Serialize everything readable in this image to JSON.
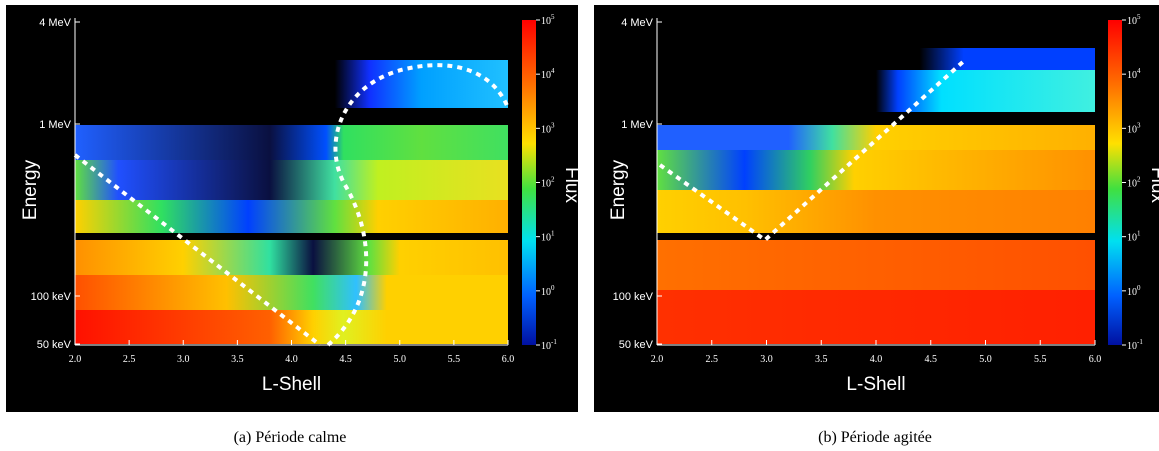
{
  "figure": {
    "panels": [
      {
        "y_ticks": [
          "4 MeV",
          "1 MeV",
          "100 keV",
          "50 keV"
        ],
        "y_label": "Energy",
        "x_ticks": [
          "2.0",
          "2.5",
          "3.0",
          "3.5",
          "4.0",
          "4.5",
          "5.0",
          "5.5",
          "6.0"
        ],
        "x_label": "L-Shell",
        "colorbar_label": "Flux",
        "colorbar_ticks": [
          {
            "base": "10",
            "exponent": "5"
          },
          {
            "base": "10",
            "exponent": "4"
          },
          {
            "base": "10",
            "exponent": "3"
          },
          {
            "base": "10",
            "exponent": "2"
          },
          {
            "base": "10",
            "exponent": "1"
          },
          {
            "base": "10",
            "exponent": "0"
          },
          {
            "base": "10",
            "exponent": "-1"
          }
        ],
        "caption": "(a)  Période calme"
      },
      {
        "y_ticks": [
          "4 MeV",
          "1 MeV",
          "100 keV",
          "50 keV"
        ],
        "y_label": "Energy",
        "x_ticks": [
          "2.0",
          "2.5",
          "3.0",
          "3.5",
          "4.0",
          "4.5",
          "5.0",
          "5.5",
          "6.0"
        ],
        "x_label": "L-Shell",
        "colorbar_label": "Flux",
        "colorbar_ticks": [
          {
            "base": "10",
            "exponent": "5"
          },
          {
            "base": "10",
            "exponent": "4"
          },
          {
            "base": "10",
            "exponent": "3"
          },
          {
            "base": "10",
            "exponent": "2"
          },
          {
            "base": "10",
            "exponent": "1"
          },
          {
            "base": "10",
            "exponent": "0"
          },
          {
            "base": "10",
            "exponent": "-1"
          }
        ],
        "caption": "(b)  Période agitée"
      }
    ]
  }
}
